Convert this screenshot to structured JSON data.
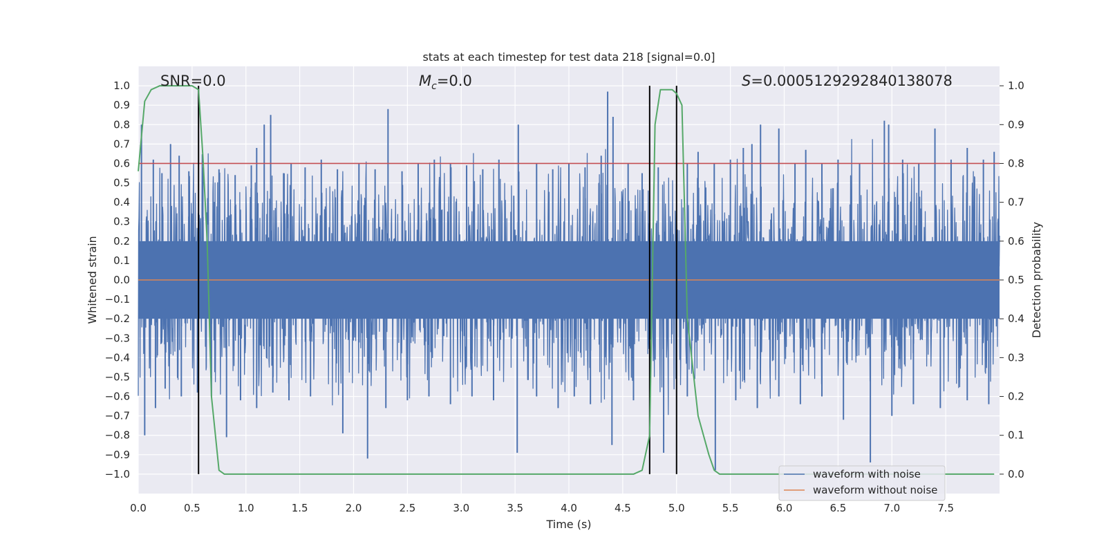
{
  "chart_data": {
    "type": "line",
    "title": "stats at each timestep for test data 218 [signal=0.0]",
    "xlabel": "Time (s)",
    "ylabel": "Whitened strain",
    "ylabel_right": "Detection probability",
    "xlim": [
      0.0,
      8.0
    ],
    "ylim": [
      -1.1,
      1.1
    ],
    "ylim_right": [
      -0.05,
      1.05
    ],
    "x_ticks": [
      0.0,
      0.5,
      1.0,
      1.5,
      2.0,
      2.5,
      3.0,
      3.5,
      4.0,
      4.5,
      5.0,
      5.5,
      6.0,
      6.5,
      7.0,
      7.5
    ],
    "x_tick_labels": [
      "0.0",
      "0.5",
      "1.0",
      "1.5",
      "2.0",
      "2.5",
      "3.0",
      "3.5",
      "4.0",
      "4.5",
      "5.0",
      "5.5",
      "6.0",
      "6.5",
      "7.0",
      "7.5"
    ],
    "y_ticks": [
      1.0,
      0.9,
      0.8,
      0.7,
      0.6,
      0.5,
      0.4,
      0.3,
      0.2,
      0.1,
      0.0,
      -0.1,
      -0.2,
      -0.3,
      -0.4,
      -0.5,
      -0.6,
      -0.7,
      -0.8,
      -0.9,
      -1.0
    ],
    "y_tick_labels": [
      "1.0",
      "0.9",
      "0.8",
      "0.7",
      "0.6",
      "0.5",
      "0.4",
      "0.3",
      "0.2",
      "0.1",
      "0.0",
      "−0.1",
      "−0.2",
      "−0.3",
      "−0.4",
      "−0.5",
      "−0.6",
      "−0.7",
      "−0.8",
      "−0.9",
      "−1.0"
    ],
    "y_right_ticks": [
      1.0,
      0.9,
      0.8,
      0.7,
      0.6,
      0.5,
      0.4,
      0.3,
      0.2,
      0.1,
      0.0
    ],
    "y_right_tick_labels": [
      "1.0",
      "0.9",
      "0.8",
      "0.7",
      "0.6",
      "0.5",
      "0.4",
      "0.3",
      "0.2",
      "0.1",
      "0.0"
    ],
    "annotations": {
      "snr": "SNR=0.0",
      "mc_symbol": "M",
      "mc_subscript": "c",
      "mc_value": "=0.0",
      "s_symbol": "S",
      "s_value": "=0.0005129292840138078"
    },
    "legend": [
      "waveform with noise",
      "waveform without noise"
    ],
    "legend_position": "lower-right",
    "noise_series": {
      "name": "waveform with noise",
      "color": "#4c72b0",
      "core_band": [
        -0.2,
        0.2
      ],
      "positive_spikes": [
        [
          0.03,
          0.8
        ],
        [
          0.14,
          0.62
        ],
        [
          0.22,
          0.55
        ],
        [
          0.3,
          0.7
        ],
        [
          0.38,
          0.64
        ],
        [
          0.47,
          0.56
        ],
        [
          0.6,
          0.58
        ],
        [
          0.75,
          0.57
        ],
        [
          0.9,
          0.54
        ],
        [
          1.05,
          0.59
        ],
        [
          1.1,
          0.68
        ],
        [
          1.17,
          0.8
        ],
        [
          1.23,
          0.85
        ],
        [
          1.35,
          0.55
        ],
        [
          1.42,
          0.6
        ],
        [
          1.55,
          0.58
        ],
        [
          1.7,
          0.62
        ],
        [
          1.85,
          0.57
        ],
        [
          2.05,
          0.6
        ],
        [
          2.2,
          0.57
        ],
        [
          2.32,
          0.88
        ],
        [
          2.45,
          0.56
        ],
        [
          2.6,
          0.6
        ],
        [
          2.75,
          0.62
        ],
        [
          2.9,
          0.6
        ],
        [
          3.05,
          0.59
        ],
        [
          3.2,
          0.57
        ],
        [
          3.35,
          0.62
        ],
        [
          3.53,
          0.8
        ],
        [
          3.7,
          0.6
        ],
        [
          3.85,
          0.57
        ],
        [
          4.0,
          0.6
        ],
        [
          4.15,
          0.58
        ],
        [
          4.3,
          0.64
        ],
        [
          4.36,
          0.97
        ],
        [
          4.41,
          0.84
        ],
        [
          4.55,
          0.6
        ],
        [
          4.68,
          0.55
        ],
        [
          4.83,
          0.58
        ],
        [
          5.1,
          0.6
        ],
        [
          5.2,
          0.66
        ],
        [
          5.35,
          0.6
        ],
        [
          5.5,
          0.62
        ],
        [
          5.62,
          0.68
        ],
        [
          5.7,
          0.7
        ],
        [
          5.78,
          0.8
        ],
        [
          5.95,
          0.78
        ],
        [
          6.1,
          0.6
        ],
        [
          6.2,
          0.67
        ],
        [
          6.35,
          0.6
        ],
        [
          6.5,
          0.62
        ],
        [
          6.7,
          0.6
        ],
        [
          6.93,
          0.82
        ],
        [
          6.97,
          0.8
        ],
        [
          7.1,
          0.62
        ],
        [
          7.25,
          0.6
        ],
        [
          7.4,
          0.78
        ],
        [
          7.55,
          0.62
        ],
        [
          7.7,
          0.68
        ],
        [
          7.85,
          0.62
        ],
        [
          7.95,
          0.66
        ]
      ],
      "negative_spikes": [
        [
          0.06,
          -0.8
        ],
        [
          0.16,
          -0.66
        ],
        [
          0.25,
          -0.56
        ],
        [
          0.4,
          -0.6
        ],
        [
          0.55,
          -0.58
        ],
        [
          0.68,
          -0.6
        ],
        [
          0.82,
          -0.81
        ],
        [
          0.95,
          -0.62
        ],
        [
          1.1,
          -0.66
        ],
        [
          1.25,
          -0.58
        ],
        [
          1.4,
          -0.62
        ],
        [
          1.6,
          -0.6
        ],
        [
          1.9,
          -0.79
        ],
        [
          2.13,
          -0.92
        ],
        [
          2.3,
          -0.66
        ],
        [
          2.5,
          -0.62
        ],
        [
          2.7,
          -0.6
        ],
        [
          2.9,
          -0.64
        ],
        [
          3.1,
          -0.6
        ],
        [
          3.3,
          -0.62
        ],
        [
          3.52,
          -0.89
        ],
        [
          3.7,
          -0.6
        ],
        [
          3.9,
          -0.66
        ],
        [
          4.05,
          -0.6
        ],
        [
          4.2,
          -0.64
        ],
        [
          4.4,
          -0.85
        ],
        [
          4.6,
          -0.62
        ],
        [
          4.88,
          -0.89
        ],
        [
          5.1,
          -0.6
        ],
        [
          5.36,
          -0.98
        ],
        [
          5.55,
          -0.62
        ],
        [
          5.75,
          -0.66
        ],
        [
          5.95,
          -0.6
        ],
        [
          6.15,
          -0.64
        ],
        [
          6.35,
          -0.6
        ],
        [
          6.55,
          -0.72
        ],
        [
          6.8,
          -0.94
        ],
        [
          7.0,
          -0.7
        ],
        [
          7.2,
          -0.64
        ],
        [
          7.45,
          -0.66
        ],
        [
          7.7,
          -0.62
        ],
        [
          7.9,
          -0.64
        ]
      ]
    },
    "clean_series": {
      "name": "waveform without noise",
      "color": "#dd8452",
      "x": [
        0.0,
        8.0
      ],
      "values": [
        0.0,
        0.0
      ]
    },
    "probability_series": {
      "name": "Detection probability",
      "axis": "right",
      "color": "#55a868",
      "x": [
        0.0,
        0.06,
        0.12,
        0.2,
        0.3,
        0.4,
        0.5,
        0.56,
        0.6,
        0.64,
        0.68,
        0.75,
        0.8,
        0.9,
        1.5,
        2.0,
        2.5,
        3.0,
        3.5,
        4.0,
        4.5,
        4.6,
        4.68,
        4.75,
        4.8,
        4.85,
        4.9,
        4.96,
        5.0,
        5.05,
        5.1,
        5.2,
        5.3,
        5.35,
        5.4,
        5.6,
        6.0,
        6.5,
        7.0,
        7.5,
        7.95
      ],
      "values": [
        0.78,
        0.96,
        0.99,
        1.0,
        1.0,
        1.0,
        1.0,
        0.99,
        0.82,
        0.6,
        0.2,
        0.01,
        0.0,
        0.0,
        0.0,
        0.0,
        0.0,
        0.0,
        0.0,
        0.0,
        0.0,
        0.0,
        0.01,
        0.1,
        0.9,
        0.99,
        0.99,
        0.99,
        0.98,
        0.95,
        0.4,
        0.15,
        0.05,
        0.01,
        0.0,
        0.0,
        0.0,
        0.0,
        0.0,
        0.0,
        0.0
      ]
    },
    "threshold": {
      "value": 0.8,
      "color": "#c44e52"
    },
    "vertical_markers": {
      "x": [
        0.56,
        4.75,
        5.0
      ],
      "color": "#000000"
    }
  }
}
